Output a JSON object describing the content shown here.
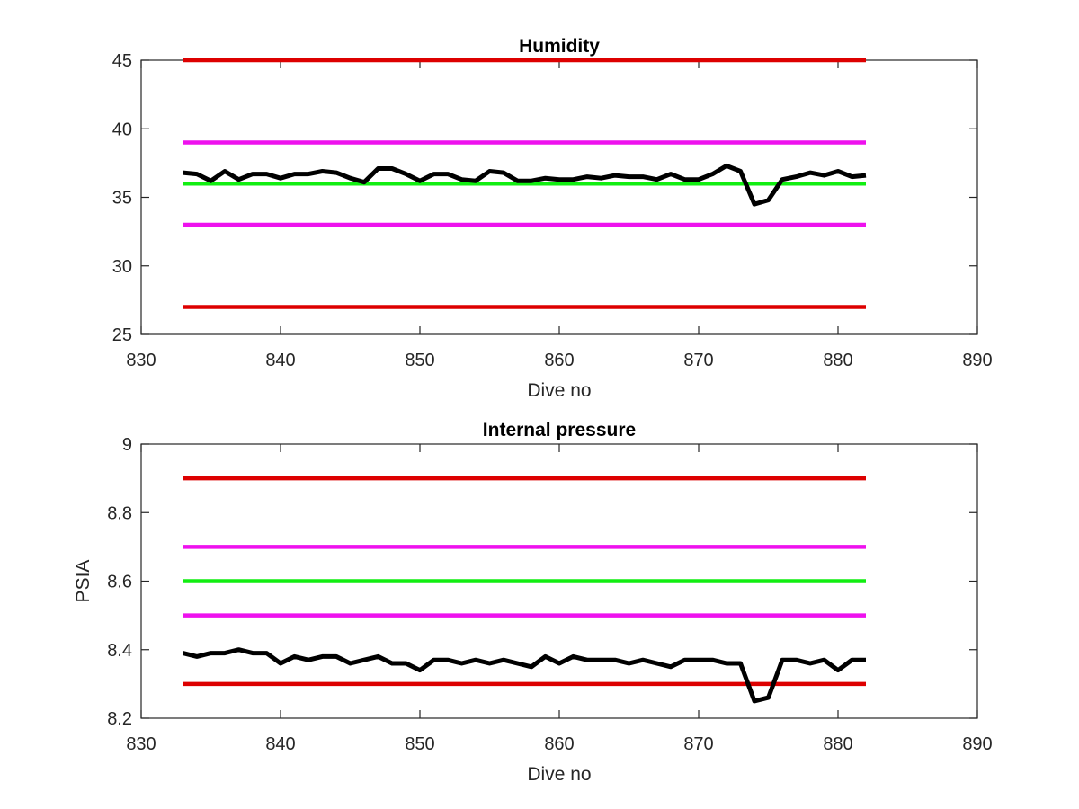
{
  "chart_data": [
    {
      "type": "line",
      "title": "Humidity",
      "xlabel": "Dive no",
      "ylabel": "",
      "xlim": [
        830,
        890
      ],
      "ylim": [
        25,
        45
      ],
      "xticks": [
        "830",
        "840",
        "850",
        "860",
        "870",
        "880",
        "890"
      ],
      "yticks": [
        "25",
        "30",
        "35",
        "40",
        "45"
      ],
      "grid": false,
      "series": [
        {
          "color": "#dd0000",
          "x": [
            833,
            882
          ],
          "y": [
            45,
            45
          ]
        },
        {
          "color": "#ee11ee",
          "x": [
            833,
            882
          ],
          "y": [
            39,
            39
          ]
        },
        {
          "color": "#11ee11",
          "x": [
            833,
            882
          ],
          "y": [
            36,
            36
          ]
        },
        {
          "color": "#ee11ee",
          "x": [
            833,
            882
          ],
          "y": [
            33,
            33
          ]
        },
        {
          "color": "#dd0000",
          "x": [
            833,
            882
          ],
          "y": [
            27,
            27
          ]
        },
        {
          "color": "#000000",
          "x": [
            833,
            834,
            835,
            836,
            837,
            838,
            839,
            840,
            841,
            842,
            843,
            844,
            845,
            846,
            847,
            848,
            849,
            850,
            851,
            852,
            853,
            854,
            855,
            856,
            857,
            858,
            859,
            860,
            861,
            862,
            863,
            864,
            865,
            866,
            867,
            868,
            869,
            870,
            871,
            872,
            873,
            874,
            875,
            876,
            877,
            878,
            879,
            880,
            881,
            882
          ],
          "y": [
            36.8,
            36.7,
            36.2,
            36.9,
            36.3,
            36.7,
            36.7,
            36.4,
            36.7,
            36.7,
            36.9,
            36.8,
            36.4,
            36.1,
            37.1,
            37.1,
            36.7,
            36.2,
            36.7,
            36.7,
            36.3,
            36.2,
            36.9,
            36.8,
            36.2,
            36.2,
            36.4,
            36.3,
            36.3,
            36.5,
            36.4,
            36.6,
            36.5,
            36.5,
            36.3,
            36.7,
            36.3,
            36.3,
            36.7,
            37.3,
            36.9,
            34.5,
            34.8,
            36.3,
            36.5,
            36.8,
            36.6,
            36.9,
            36.5,
            36.6
          ]
        }
      ]
    },
    {
      "type": "line",
      "title": "Internal pressure",
      "xlabel": "Dive no",
      "ylabel": "PSIA",
      "xlim": [
        830,
        890
      ],
      "ylim": [
        8.2,
        9
      ],
      "xticks": [
        "830",
        "840",
        "850",
        "860",
        "870",
        "880",
        "890"
      ],
      "yticks": [
        "8.2",
        "8.4",
        "8.6",
        "8.8",
        "9"
      ],
      "grid": false,
      "series": [
        {
          "color": "#dd0000",
          "x": [
            833,
            882
          ],
          "y": [
            8.9,
            8.9
          ]
        },
        {
          "color": "#ee11ee",
          "x": [
            833,
            882
          ],
          "y": [
            8.7,
            8.7
          ]
        },
        {
          "color": "#11ee11",
          "x": [
            833,
            882
          ],
          "y": [
            8.6,
            8.6
          ]
        },
        {
          "color": "#ee11ee",
          "x": [
            833,
            882
          ],
          "y": [
            8.5,
            8.5
          ]
        },
        {
          "color": "#dd0000",
          "x": [
            833,
            882
          ],
          "y": [
            8.3,
            8.3
          ]
        },
        {
          "color": "#000000",
          "x": [
            833,
            834,
            835,
            836,
            837,
            838,
            839,
            840,
            841,
            842,
            843,
            844,
            845,
            846,
            847,
            848,
            849,
            850,
            851,
            852,
            853,
            854,
            855,
            856,
            857,
            858,
            859,
            860,
            861,
            862,
            863,
            864,
            865,
            866,
            867,
            868,
            869,
            870,
            871,
            872,
            873,
            874,
            875,
            876,
            877,
            878,
            879,
            880,
            881,
            882
          ],
          "y": [
            8.39,
            8.38,
            8.39,
            8.39,
            8.4,
            8.39,
            8.39,
            8.36,
            8.38,
            8.37,
            8.38,
            8.38,
            8.36,
            8.37,
            8.38,
            8.36,
            8.36,
            8.34,
            8.37,
            8.37,
            8.36,
            8.37,
            8.36,
            8.37,
            8.36,
            8.35,
            8.38,
            8.36,
            8.38,
            8.37,
            8.37,
            8.37,
            8.36,
            8.37,
            8.36,
            8.35,
            8.37,
            8.37,
            8.37,
            8.36,
            8.36,
            8.25,
            8.26,
            8.37,
            8.37,
            8.36,
            8.37,
            8.34,
            8.37,
            8.37
          ]
        }
      ]
    }
  ]
}
